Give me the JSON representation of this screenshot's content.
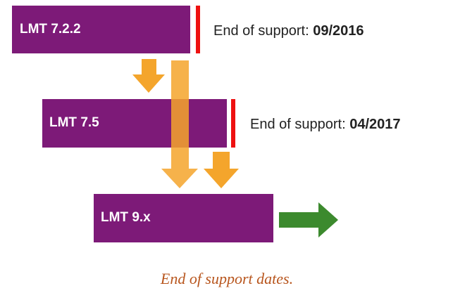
{
  "nodes": [
    {
      "label": "LMT 7.2.2",
      "support_label": "End of support:",
      "support_date": "09/2016"
    },
    {
      "label": "LMT 7.5",
      "support_label": "End of support:",
      "support_date": "04/2017"
    },
    {
      "label": "LMT 9.x"
    }
  ],
  "caption": "End of support dates."
}
